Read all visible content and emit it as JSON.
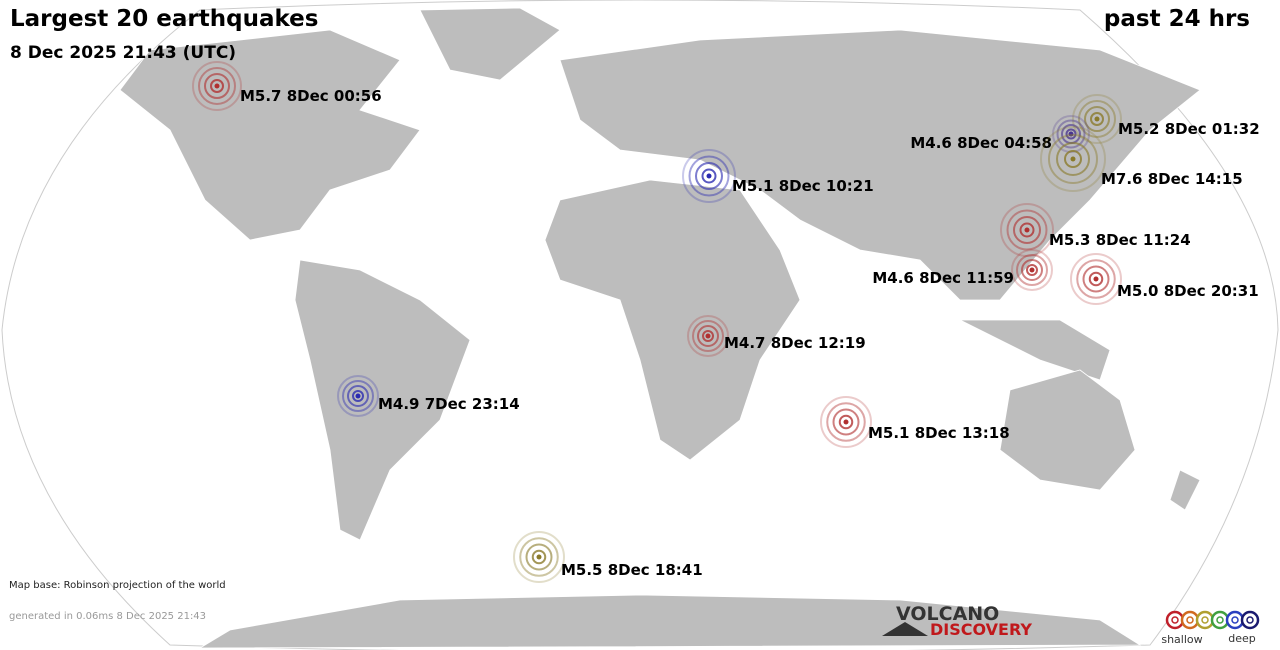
{
  "header": {
    "title": "Largest 20 earthquakes",
    "period": "past 24 hrs",
    "timestamp": "8 Dec 2025 21:43 (UTC)"
  },
  "quakes": [
    {
      "label": "M5.7  8Dec 00:56",
      "color": "#b03030"
    },
    {
      "label": "M5.2  8Dec 01:32",
      "color": "#8a7a2a"
    },
    {
      "label": "M4.6  8Dec 04:58",
      "color": "#4a3590"
    },
    {
      "label": "M7.6  8Dec 14:15",
      "color": "#8a7a2a"
    },
    {
      "label": "M5.1  8Dec 10:21",
      "color": "#2a2ab0"
    },
    {
      "label": "M5.3  8Dec 11:24",
      "color": "#b03030"
    },
    {
      "label": "M4.6  8Dec 11:59",
      "color": "#b03030"
    },
    {
      "label": "M5.0  8Dec 20:31",
      "color": "#b03030"
    },
    {
      "label": "M4.7  8Dec 12:19",
      "color": "#b03030"
    },
    {
      "label": "M4.9  7Dec 23:14",
      "color": "#2a2ab0"
    },
    {
      "label": "M5.1  8Dec 13:18",
      "color": "#b03030"
    },
    {
      "label": "M5.5  8Dec 18:41",
      "color": "#8a7a2a"
    }
  ],
  "footer": {
    "map_base": "Map base: Robinson projection of the world",
    "generated": "generated in 0.06ms  8 Dec 2025 21:43"
  },
  "logo": {
    "line1": "VOLCANO",
    "line2": "DISCOVERY"
  },
  "legend": {
    "shallow": "shallow",
    "deep": "deep"
  }
}
